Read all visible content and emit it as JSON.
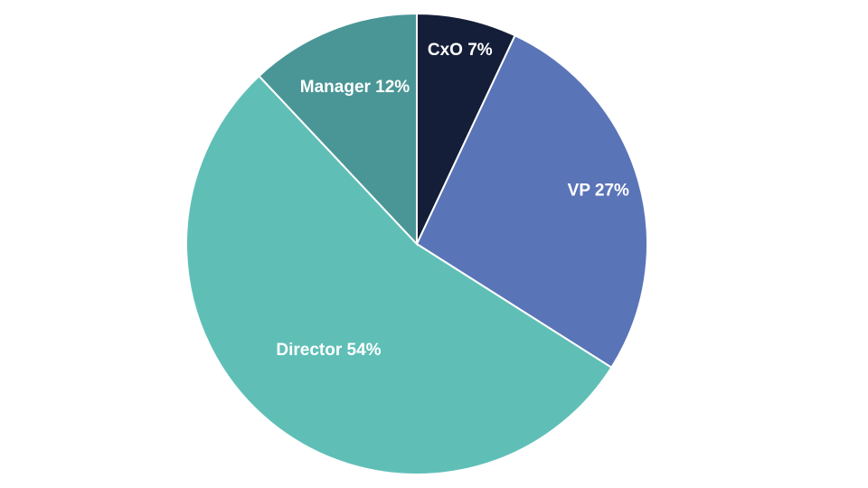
{
  "chart_data": {
    "type": "pie",
    "title": "",
    "start": "top",
    "direction": "clockwise",
    "slices": [
      {
        "label": "CxO",
        "value": 7,
        "value_label": "7%",
        "color": "#141e38"
      },
      {
        "label": "VP",
        "value": 27,
        "value_label": "27%",
        "color": "#5a74b8"
      },
      {
        "label": "Director",
        "value": 54,
        "value_label": "54%",
        "color": "#5fbfb7"
      },
      {
        "label": "Manager",
        "value": 12,
        "value_label": "12%",
        "color": "#4a9696"
      }
    ]
  }
}
